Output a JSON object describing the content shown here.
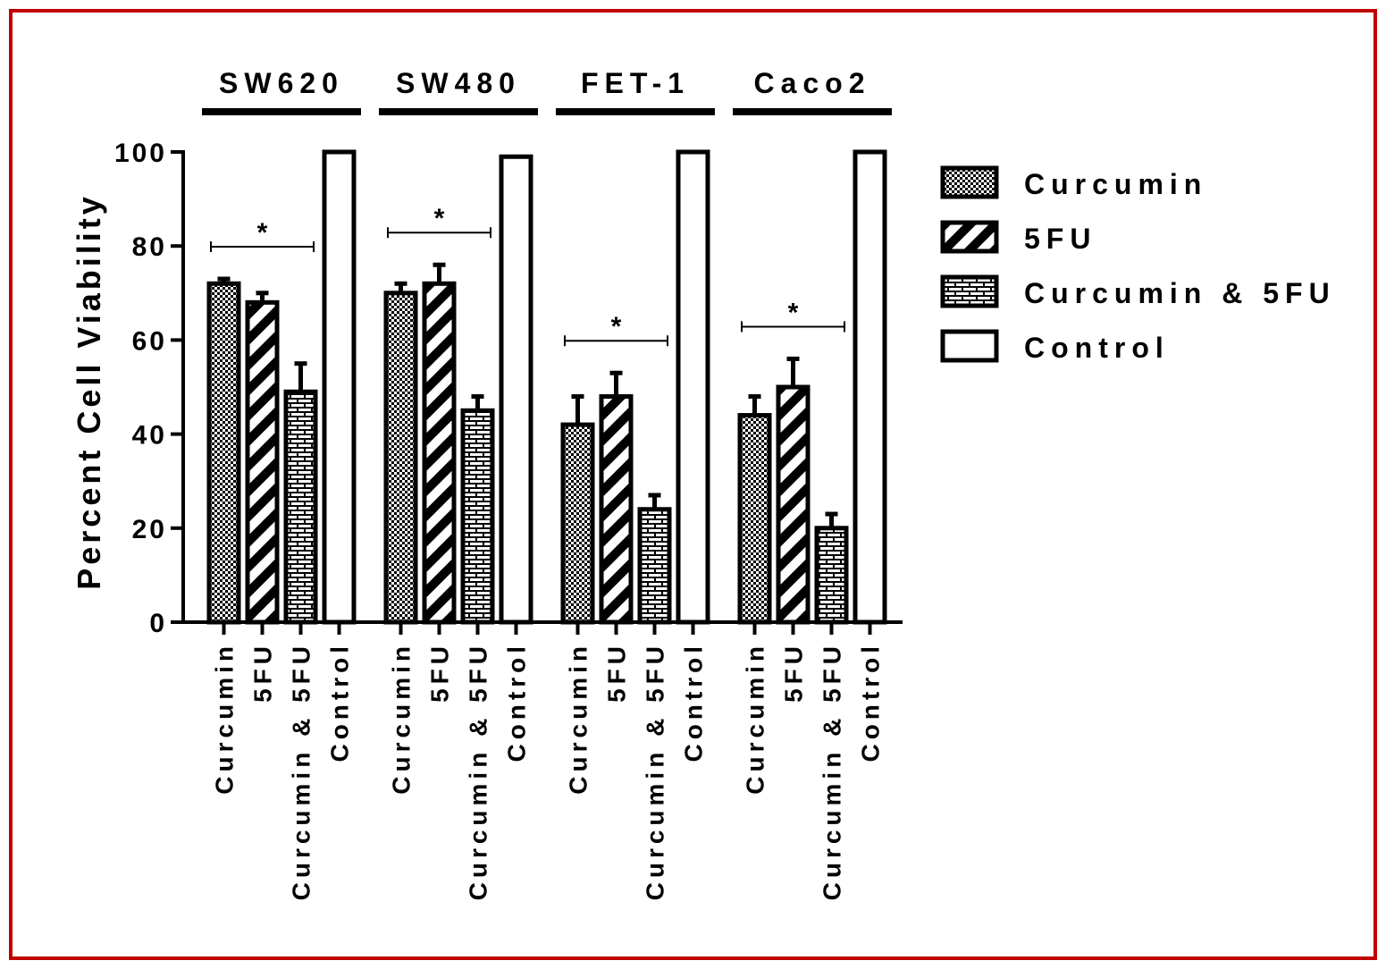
{
  "chart_data": {
    "type": "bar",
    "ylabel": "Percent Cell Viability",
    "ylim": [
      0,
      100
    ],
    "yticks": [
      "0",
      "20",
      "40",
      "60",
      "80",
      "100"
    ],
    "grid": false,
    "legend_position": "right",
    "series": [
      {
        "name": "Curcumin",
        "pattern": "checker"
      },
      {
        "name": "5FU",
        "pattern": "diagonal"
      },
      {
        "name": "Curcumin & 5FU",
        "pattern": "brick"
      },
      {
        "name": "Control",
        "pattern": "none"
      }
    ],
    "groups": [
      {
        "name": "SW620",
        "significance": "*",
        "categories": [
          "Curcumin",
          "5FU",
          "Curcumin & 5FU",
          "Control"
        ],
        "values": [
          72,
          68,
          49,
          100
        ],
        "errors": [
          1,
          2,
          6,
          0
        ]
      },
      {
        "name": "SW480",
        "significance": "*",
        "categories": [
          "Curcumin",
          "5FU",
          "Curcumin & 5FU",
          "Control"
        ],
        "values": [
          70,
          72,
          45,
          99
        ],
        "errors": [
          2,
          4,
          3,
          0
        ]
      },
      {
        "name": "FET-1",
        "significance": "*",
        "categories": [
          "Curcumin",
          "5FU",
          "Curcumin & 5FU",
          "Control"
        ],
        "values": [
          42,
          48,
          24,
          100
        ],
        "errors": [
          6,
          5,
          3,
          0
        ]
      },
      {
        "name": "Caco2",
        "significance": "*",
        "categories": [
          "Curcumin",
          "5FU",
          "Curcumin & 5FU",
          "Control"
        ],
        "values": [
          44,
          50,
          20,
          100
        ],
        "errors": [
          4,
          6,
          3,
          0
        ]
      }
    ]
  },
  "colors": {
    "frame": "#c00000",
    "ink": "#000000",
    "background": "#ffffff"
  }
}
